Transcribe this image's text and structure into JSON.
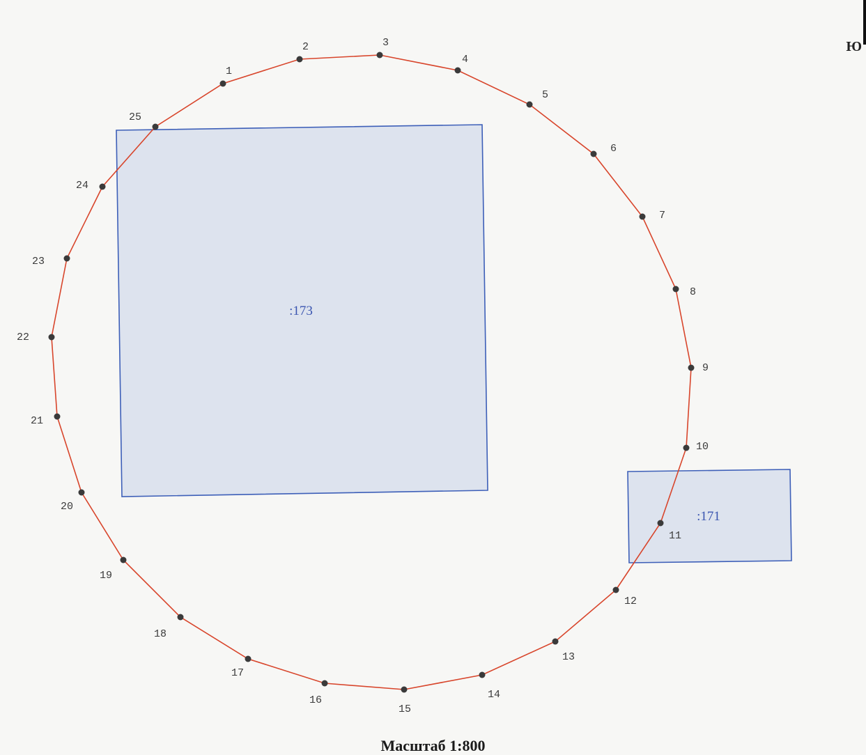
{
  "orientation_letter": "Ю",
  "scale_text": "Масштаб 1:800",
  "colors": {
    "boundary_line": "#d8452b",
    "point_fill": "#3a3a3a",
    "parcel_stroke": "#3d5fb8",
    "parcel_fill": "#dde3ee",
    "parcel_label": "#3a55b0"
  },
  "boundary_points": [
    "1",
    "2",
    "3",
    "4",
    "5",
    "6",
    "7",
    "8",
    "9",
    "10",
    "11",
    "12",
    "13",
    "14",
    "15",
    "16",
    "17",
    "18",
    "19",
    "20",
    "21",
    "22",
    "23",
    "24",
    "25"
  ],
  "parcels": [
    {
      "label": ":173"
    },
    {
      "label": ":171"
    }
  ]
}
